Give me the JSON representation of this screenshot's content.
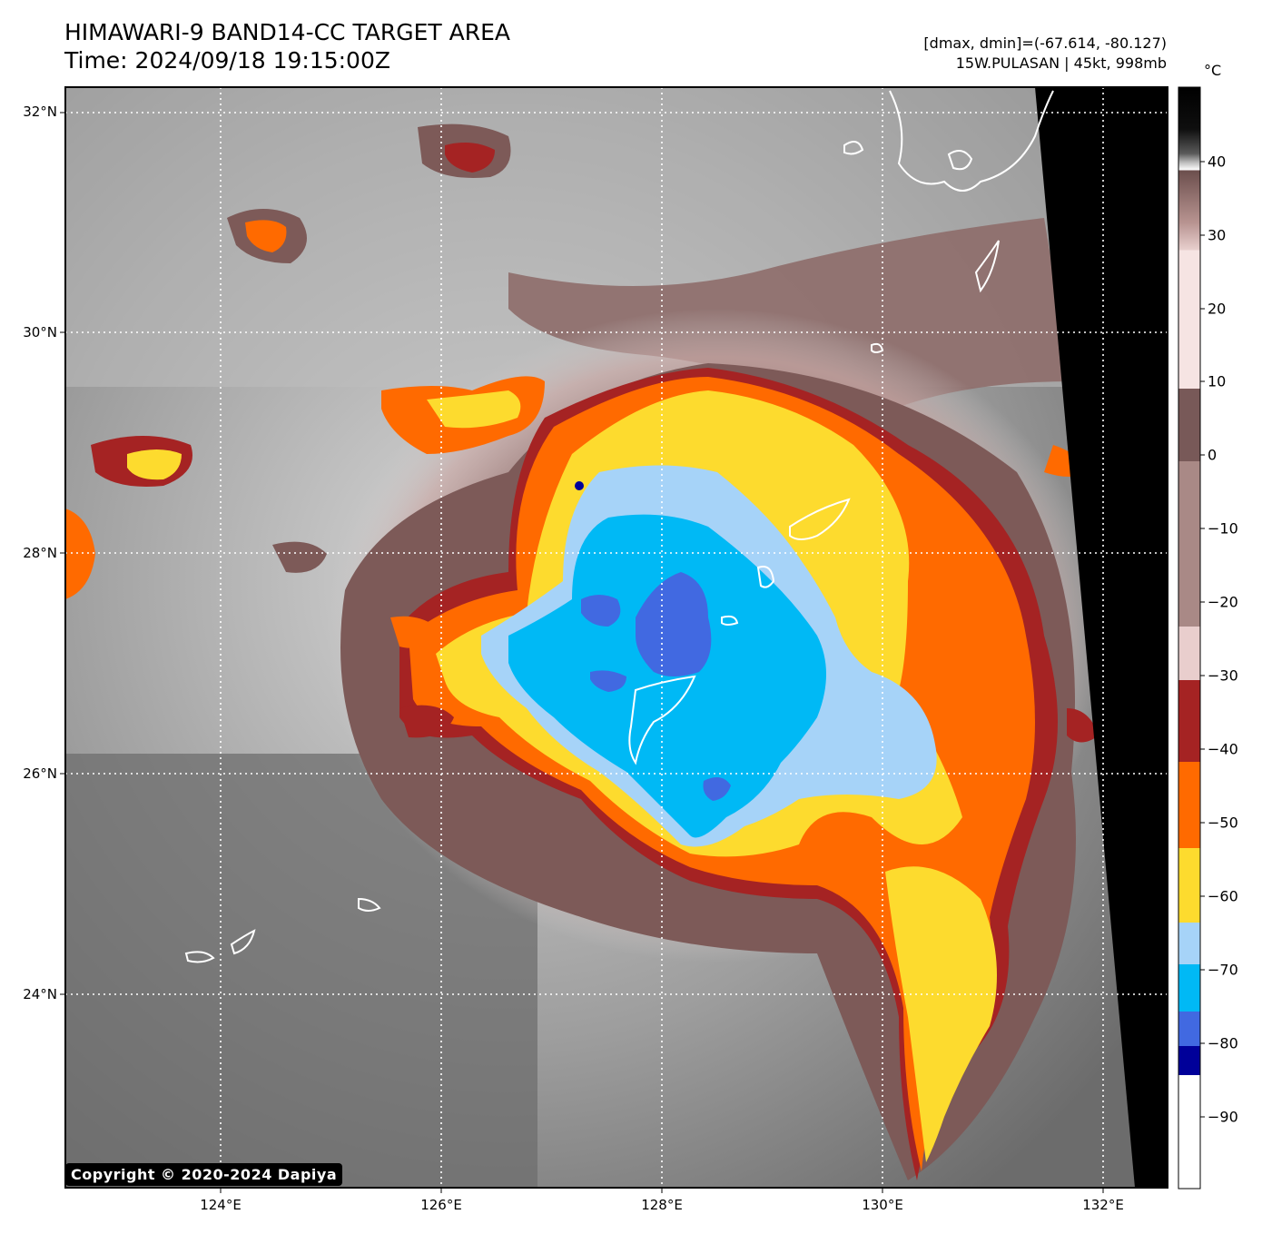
{
  "header": {
    "title_line1": "HIMAWARI-9 BAND14-CC TARGET AREA",
    "title_line2": "Time: 2024/09/18 19:15:00Z",
    "range_text": "[dmax, dmin]=(-67.614, -80.127)",
    "storm_text": "15W.PULASAN | 45kt, 998mb"
  },
  "map": {
    "lat_labels": [
      "32°N",
      "30°N",
      "28°N",
      "26°N",
      "24°N"
    ],
    "lon_labels": [
      "124°E",
      "126°E",
      "128°E",
      "130°E",
      "132°E"
    ],
    "copyright": "Copyright © 2020-2024 Dapiya"
  },
  "colorbar": {
    "unit": "°C",
    "tick_labels": [
      "40",
      "30",
      "20",
      "10",
      "0",
      "−10",
      "−20",
      "−30",
      "−40",
      "−50",
      "−60",
      "−70",
      "−80",
      "−90"
    ],
    "range": [
      -100,
      49
    ],
    "colors": {
      "warm_black": "#000000",
      "gray_mid": "#7a7a7a",
      "gray_light": "#dcdcdc",
      "brown": "#7b5a58",
      "pink": "#f3dedd",
      "dark_red": "#a52323",
      "orange": "#ff6a00",
      "yellow": "#fddb2e",
      "light_blue": "#a6d3f8",
      "cyan": "#00b9f5",
      "royal_blue": "#4169e1",
      "navy": "#000099",
      "white": "#ffffff"
    }
  }
}
